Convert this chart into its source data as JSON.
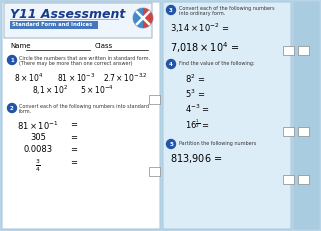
{
  "bg_color": "#b8d4e8",
  "white_panel_color": "#ffffff",
  "mid_panel_color": "#ddedf8",
  "right_strip_color": "#aacce0",
  "header_title_color": "#1a3a8c",
  "subtitle_bg": "#4477bb",
  "subtitle_text_color": "#ffffff",
  "bullet_color": "#2255aa",
  "title": "Y11 Assessment",
  "subtitle": "Standard Form and Indices",
  "name_label": "Name",
  "class_label": "Class",
  "q1_num": "1",
  "q1_text_line1": "Circle the numbers that are written in standard form.",
  "q1_text_line2": "(There may be more than one correct answer)",
  "q2_num": "2",
  "q2_text": "Convert each of the following numbers into standard\nform.",
  "q3_num": "3",
  "q3_text": "Convert each of the following numbers\ninto ordinary form.",
  "q4_num": "4",
  "q4_text": "Find the value of the following:",
  "q5_num": "5",
  "q5_text": "Partition the following numbers",
  "answer_box_color": "#ffffff",
  "answer_box_edge": "#888888"
}
